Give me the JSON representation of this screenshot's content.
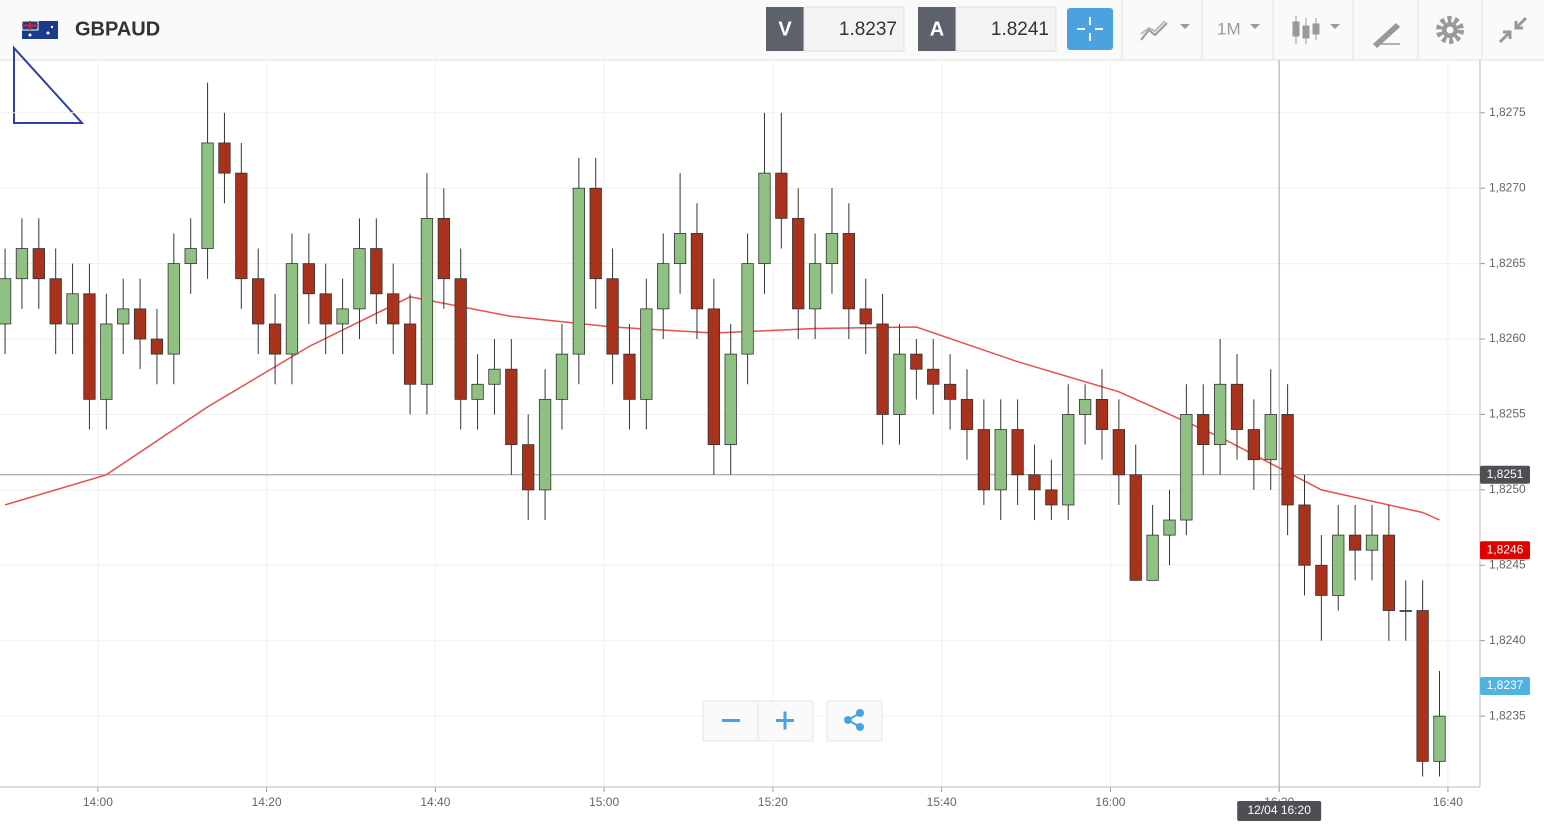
{
  "header": {
    "symbol": "GBPAUD",
    "bid_label": "V",
    "bid": "1.8237",
    "ask_label": "A",
    "ask": "1.8241",
    "timeframe": "1M"
  },
  "chart_data": {
    "type": "candlestick",
    "up_color": "#8fc183",
    "down_color": "#a8321b",
    "x": [
      829,
      831,
      833,
      835,
      837,
      839,
      841,
      843,
      845,
      847,
      849,
      851,
      853,
      855,
      857,
      859,
      861,
      863,
      865,
      867,
      869,
      871,
      873,
      875,
      877,
      879,
      881,
      883,
      885,
      887,
      889,
      891,
      893,
      895,
      897,
      899,
      901,
      903,
      905,
      907,
      909,
      911,
      913,
      915,
      917,
      919,
      921,
      923,
      925,
      927,
      929,
      931,
      933,
      935,
      937,
      939,
      941,
      943,
      945,
      947,
      949,
      951,
      953,
      955,
      957,
      959,
      961,
      963,
      965,
      967,
      969,
      971,
      973,
      975,
      977,
      979,
      981,
      983,
      985,
      987,
      989,
      991,
      993,
      995,
      997,
      999
    ],
    "open": [
      1.8261,
      1.8264,
      1.8266,
      1.8264,
      1.8261,
      1.8263,
      1.8256,
      1.8261,
      1.8262,
      1.826,
      1.8259,
      1.8265,
      1.8266,
      1.8273,
      1.8271,
      1.8264,
      1.8261,
      1.8259,
      1.8265,
      1.8263,
      1.8261,
      1.8262,
      1.8266,
      1.8263,
      1.8261,
      1.8257,
      1.8268,
      1.8264,
      1.8256,
      1.8257,
      1.8258,
      1.8253,
      1.825,
      1.8256,
      1.8259,
      1.827,
      1.8264,
      1.8259,
      1.8256,
      1.8262,
      1.8265,
      1.8267,
      1.8262,
      1.8253,
      1.8259,
      1.8265,
      1.8271,
      1.8268,
      1.8262,
      1.8265,
      1.8267,
      1.8262,
      1.8261,
      1.8255,
      1.8259,
      1.8258,
      1.8257,
      1.8256,
      1.8254,
      1.825,
      1.8254,
      1.8251,
      1.825,
      1.8249,
      1.8255,
      1.8256,
      1.8254,
      1.8251,
      1.8244,
      1.8247,
      1.8248,
      1.8255,
      1.8253,
      1.8257,
      1.8254,
      1.8252,
      1.8255,
      1.8249,
      1.8245,
      1.8243,
      1.8247,
      1.8246,
      1.8247,
      1.8242,
      1.8242,
      1.8232
    ],
    "high": [
      1.8266,
      1.8268,
      1.8268,
      1.8266,
      1.8265,
      1.8265,
      1.8263,
      1.8264,
      1.8264,
      1.8262,
      1.8267,
      1.8268,
      1.8277,
      1.8275,
      1.8273,
      1.8266,
      1.8263,
      1.8267,
      1.8267,
      1.8265,
      1.8264,
      1.8268,
      1.8268,
      1.8265,
      1.8263,
      1.8271,
      1.827,
      1.8266,
      1.8259,
      1.826,
      1.826,
      1.8255,
      1.8258,
      1.8261,
      1.8272,
      1.8272,
      1.8266,
      1.8261,
      1.8264,
      1.8267,
      1.8271,
      1.8269,
      1.8264,
      1.8261,
      1.8267,
      1.8275,
      1.8275,
      1.827,
      1.8267,
      1.827,
      1.8269,
      1.8264,
      1.8263,
      1.8261,
      1.826,
      1.826,
      1.8259,
      1.8258,
      1.8256,
      1.8256,
      1.8256,
      1.8253,
      1.8252,
      1.8257,
      1.8257,
      1.8258,
      1.8256,
      1.8253,
      1.8249,
      1.825,
      1.8257,
      1.8257,
      1.826,
      1.8259,
      1.8256,
      1.8258,
      1.8257,
      1.8251,
      1.8247,
      1.8249,
      1.8249,
      1.8249,
      1.8249,
      1.8244,
      1.8244,
      1.8238
    ],
    "low": [
      1.8259,
      1.8262,
      1.8262,
      1.8259,
      1.8259,
      1.8254,
      1.8254,
      1.8259,
      1.8258,
      1.8257,
      1.8257,
      1.8263,
      1.8264,
      1.8269,
      1.8262,
      1.8259,
      1.8257,
      1.8257,
      1.8261,
      1.8259,
      1.8259,
      1.826,
      1.8261,
      1.8259,
      1.8255,
      1.8255,
      1.8262,
      1.8254,
      1.8254,
      1.8255,
      1.8251,
      1.8248,
      1.8248,
      1.8254,
      1.8257,
      1.8262,
      1.8257,
      1.8254,
      1.8254,
      1.826,
      1.8263,
      1.826,
      1.8251,
      1.8251,
      1.8257,
      1.8263,
      1.8266,
      1.826,
      1.826,
      1.8263,
      1.826,
      1.8259,
      1.8253,
      1.8253,
      1.8256,
      1.8255,
      1.8254,
      1.8252,
      1.8249,
      1.8248,
      1.8249,
      1.8248,
      1.8248,
      1.8248,
      1.8253,
      1.8252,
      1.8249,
      1.8244,
      1.8244,
      1.8245,
      1.8247,
      1.8251,
      1.8251,
      1.8252,
      1.825,
      1.825,
      1.8247,
      1.8243,
      1.824,
      1.8242,
      1.8244,
      1.8244,
      1.824,
      1.824,
      1.8231,
      1.8231
    ],
    "close": [
      1.8264,
      1.8266,
      1.8264,
      1.8261,
      1.8263,
      1.8256,
      1.8261,
      1.8262,
      1.826,
      1.8259,
      1.8265,
      1.8266,
      1.8273,
      1.8271,
      1.8264,
      1.8261,
      1.8259,
      1.8265,
      1.8263,
      1.8261,
      1.8262,
      1.8266,
      1.8263,
      1.8261,
      1.8257,
      1.8268,
      1.8264,
      1.8256,
      1.8257,
      1.8258,
      1.8253,
      1.825,
      1.8256,
      1.8259,
      1.827,
      1.8264,
      1.8259,
      1.8256,
      1.8262,
      1.8265,
      1.8267,
      1.8262,
      1.8253,
      1.8259,
      1.8265,
      1.8271,
      1.8268,
      1.8262,
      1.8265,
      1.8267,
      1.8262,
      1.8261,
      1.8255,
      1.8259,
      1.8258,
      1.8257,
      1.8256,
      1.8254,
      1.825,
      1.8254,
      1.8251,
      1.825,
      1.8249,
      1.8255,
      1.8256,
      1.8254,
      1.8251,
      1.8244,
      1.8247,
      1.8248,
      1.8255,
      1.8253,
      1.8257,
      1.8254,
      1.8252,
      1.8255,
      1.8249,
      1.8245,
      1.8243,
      1.8247,
      1.8246,
      1.8247,
      1.8242,
      1.8242,
      1.8232,
      1.8235
    ],
    "ma": {
      "color": "#e8504a",
      "x": [
        829,
        841,
        853,
        865,
        877,
        889,
        901,
        913,
        925,
        937,
        949,
        961,
        973,
        985,
        997,
        999
      ],
      "values": [
        1.8249,
        1.8251,
        1.82555,
        1.82595,
        1.82628,
        1.82615,
        1.82608,
        1.82604,
        1.82607,
        1.82608,
        1.82585,
        1.82565,
        1.82535,
        1.825,
        1.82485,
        1.8248
      ]
    },
    "xlim": [
      828.4,
      1003.8
    ],
    "ylim": [
      1.82303,
      1.82785
    ],
    "xticks": [
      {
        "value": 840,
        "label": "14:00"
      },
      {
        "value": 860,
        "label": "14:20"
      },
      {
        "value": 880,
        "label": "14:40"
      },
      {
        "value": 900,
        "label": "15:00"
      },
      {
        "value": 920,
        "label": "15:20"
      },
      {
        "value": 940,
        "label": "15:40"
      },
      {
        "value": 960,
        "label": "16:00"
      },
      {
        "value": 980,
        "label": "16:20"
      },
      {
        "value": 1000,
        "label": "16:40"
      }
    ],
    "yticks": [
      {
        "value": 1.8235,
        "label": "1,8235"
      },
      {
        "value": 1.824,
        "label": "1,8240"
      },
      {
        "value": 1.8245,
        "label": "1,8245"
      },
      {
        "value": 1.825,
        "label": "1,8250"
      },
      {
        "value": 1.8255,
        "label": "1,8255"
      },
      {
        "value": 1.826,
        "label": "1,8260"
      },
      {
        "value": 1.8265,
        "label": "1,8265"
      },
      {
        "value": 1.827,
        "label": "1,8270"
      },
      {
        "value": 1.8275,
        "label": "1,8275"
      }
    ],
    "grid": true,
    "price_tags": [
      {
        "value": 1.8251,
        "label": "1,8251",
        "color": "#4d4f54",
        "line": true
      },
      {
        "value": 1.8246,
        "label": "1,8246",
        "color": "#e00000",
        "line": false
      },
      {
        "value": 1.8237,
        "label": "1,8237",
        "color": "#4fb3e0",
        "line": false
      }
    ],
    "crosshair": {
      "x": 980,
      "label": "12/04 16:20"
    }
  }
}
